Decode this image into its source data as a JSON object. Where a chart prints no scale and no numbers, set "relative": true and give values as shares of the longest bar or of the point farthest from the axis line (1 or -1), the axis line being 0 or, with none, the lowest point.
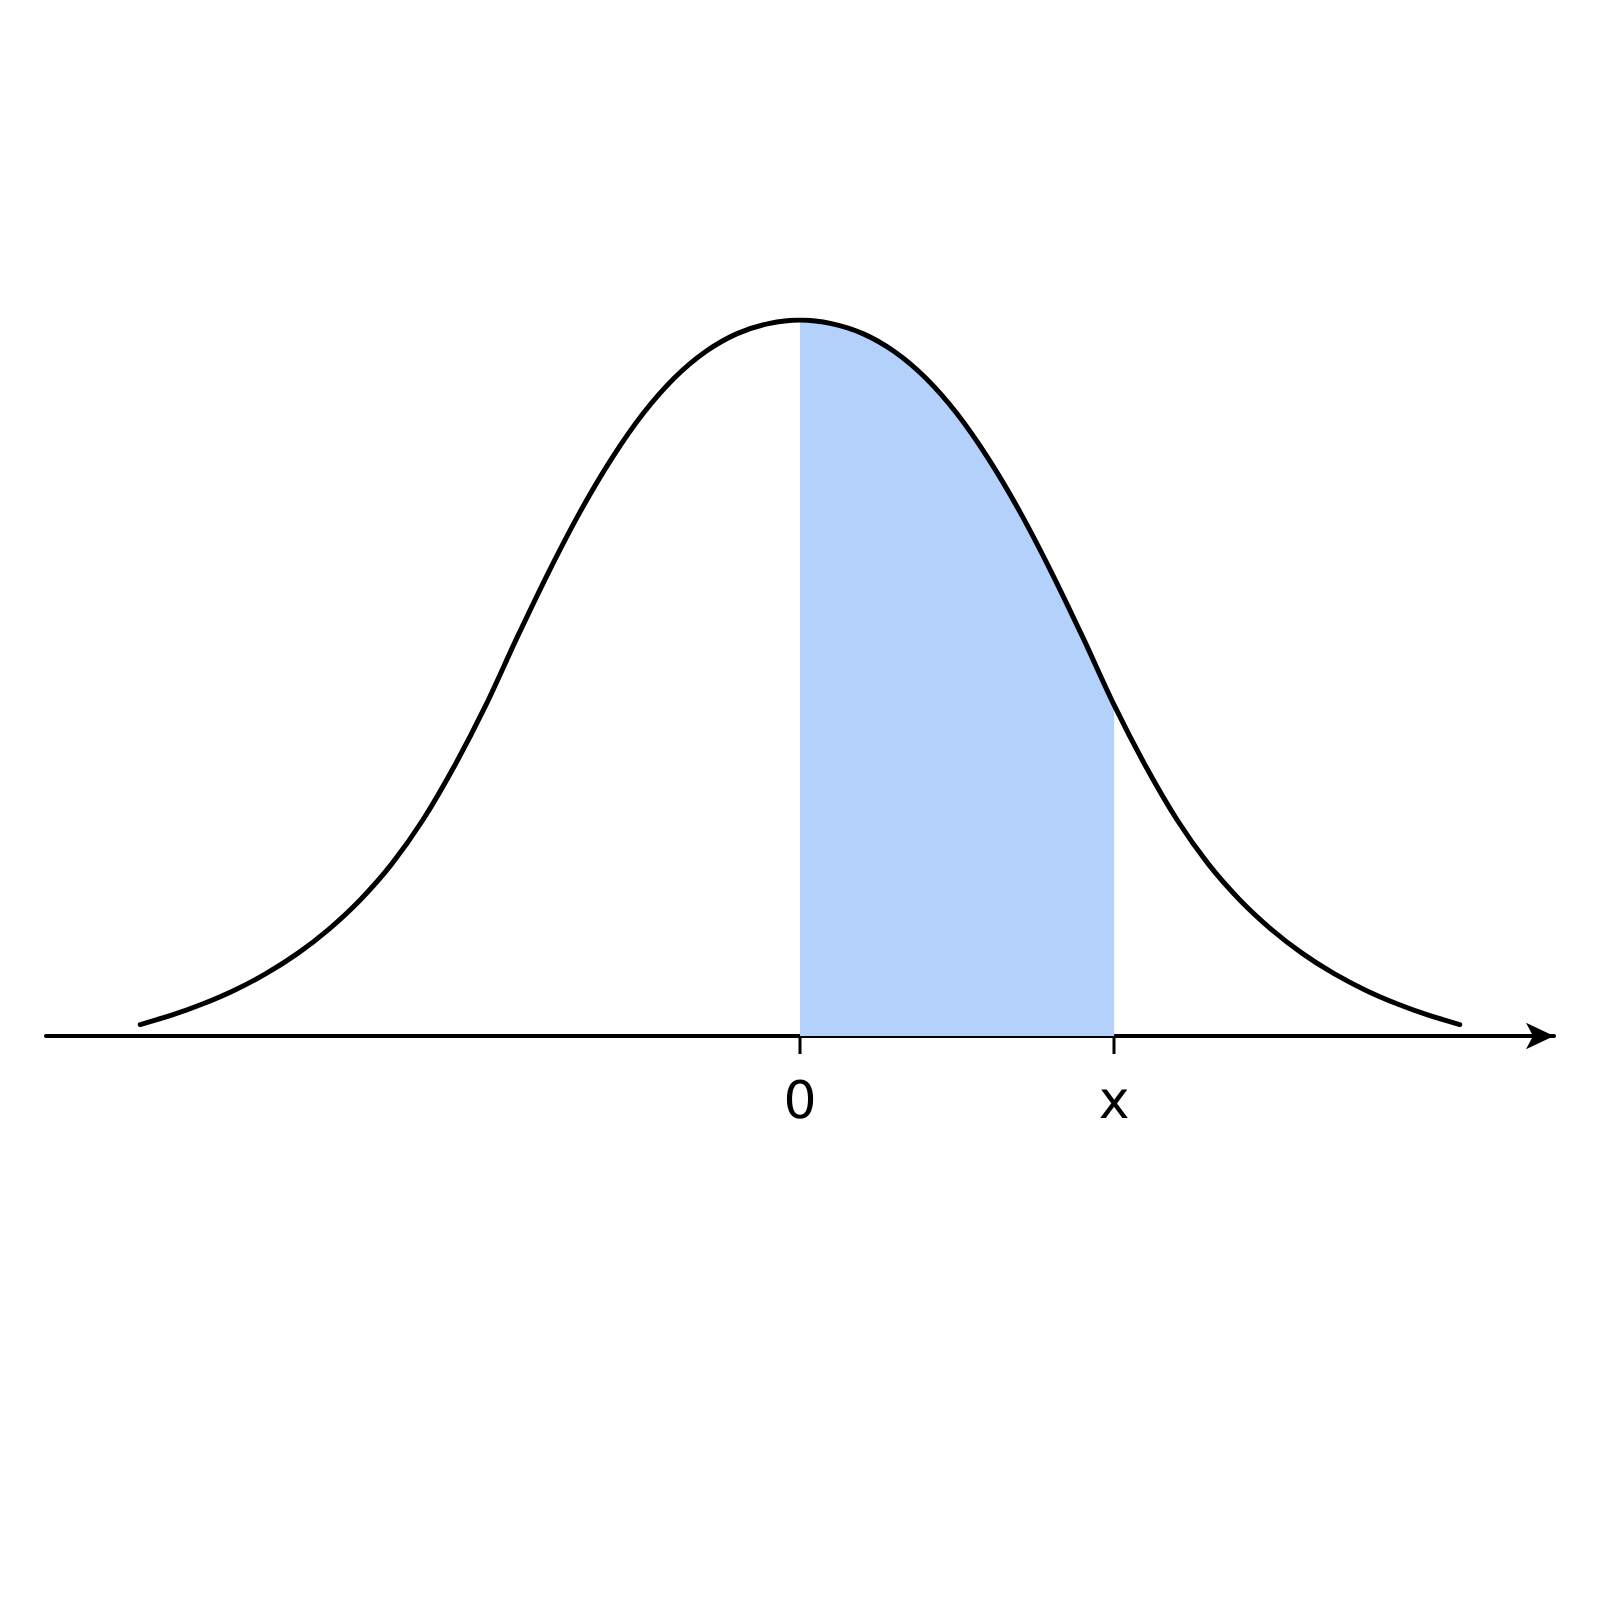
{
  "chart_data": {
    "type": "line",
    "relative": true,
    "categories": [
      null,
      null,
      null,
      null,
      null,
      null,
      null,
      null,
      null,
      null,
      null,
      null,
      null,
      null,
      null,
      null,
      null,
      null,
      null,
      null,
      null,
      null,
      null,
      null,
      "0",
      null,
      null,
      null,
      null,
      null,
      null,
      null,
      null,
      null,
      "x",
      null,
      null,
      null,
      null,
      null,
      null,
      null,
      null,
      null,
      null,
      null,
      null,
      null,
      null
    ],
    "series": [
      {
        "type": "area",
        "color": "#b3d1fa",
        "values": [
          null,
          null,
          null,
          null,
          null,
          null,
          null,
          null,
          null,
          null,
          null,
          null,
          null,
          null,
          null,
          null,
          null,
          null,
          null,
          null,
          null,
          null,
          null,
          null,
          1,
          0.995,
          0.981,
          0.956,
          0.919,
          0.869,
          0.806,
          0.732,
          0.648,
          0.557,
          0.462,
          null,
          null,
          null,
          null,
          null,
          null,
          null,
          null,
          null,
          null,
          null,
          null,
          null,
          null
        ]
      },
      {
        "color": "#000000",
        "values": [
          null,
          null,
          null,
          0.016,
          0.029,
          0.045,
          0.064,
          0.087,
          0.115,
          0.149,
          0.19,
          0.24,
          0.302,
          0.377,
          0.462,
          0.557,
          0.648,
          0.732,
          0.806,
          0.869,
          0.919,
          0.956,
          0.981,
          0.995,
          1,
          0.995,
          0.981,
          0.956,
          0.919,
          0.869,
          0.806,
          0.732,
          0.648,
          0.557,
          0.462,
          0.377,
          0.302,
          0.24,
          0.19,
          0.149,
          0.115,
          0.087,
          0.064,
          0.045,
          0.029,
          0.016,
          null,
          null,
          null
        ]
      }
    ]
  }
}
